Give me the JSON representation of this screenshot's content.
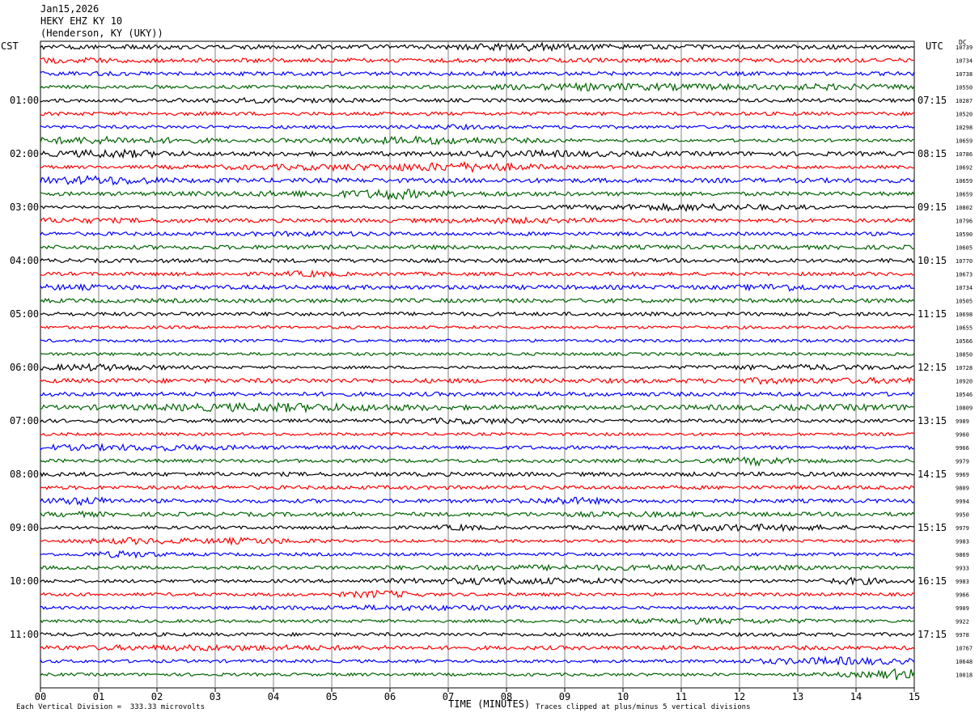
{
  "header": {
    "date": "Jan15,2026",
    "station": "HEKY EHZ KY 10",
    "location": "(Henderson, KY (UKY))"
  },
  "footer": {
    "division_note": "Each Vertical Division =  333.33 microvolts",
    "clip_note": "Traces clipped at plus/minus 5 vertical divisions"
  },
  "chart_data": {
    "type": "line",
    "title": "",
    "xlabel": "TIME (MINUTES)",
    "ylabel_left": "CST",
    "ylabel_right": "UTC",
    "dc_label": "DC",
    "xlim": [
      0,
      15
    ],
    "x_ticks": [
      "00",
      "01",
      "02",
      "03",
      "04",
      "05",
      "06",
      "07",
      "08",
      "09",
      "10",
      "11",
      "12",
      "13",
      "14",
      "15"
    ],
    "grid": "vertical lines at each minute",
    "trace_colors": [
      "#000000",
      "#ff0000",
      "#0000ff",
      "#006400"
    ],
    "cst_labels": [
      "01:00",
      "02:00",
      "03:00",
      "04:00",
      "05:00",
      "06:00",
      "07:00",
      "08:00",
      "09:00",
      "10:00",
      "11:00"
    ],
    "utc_labels": [
      "07:15",
      "08:15",
      "09:15",
      "10:15",
      "11:15",
      "12:15",
      "13:15",
      "14:15",
      "15:15",
      "16:15",
      "17:15"
    ],
    "dc_offsets": [
      "10739",
      "10734",
      "10738",
      "10550",
      "10287",
      "10520",
      "10298",
      "10659",
      "10786",
      "10692",
      "10659",
      "10659",
      "10802",
      "10796",
      "10590",
      "10605",
      "10770",
      "10673",
      "10734",
      "10505",
      "10698",
      "10655",
      "10566",
      "10850",
      "10728",
      "10920",
      "10546",
      "10809",
      "9989",
      "9960",
      "9966",
      "9979",
      "9969",
      "9809",
      "9994",
      "9950",
      "9979",
      "9983",
      "9869",
      "9933",
      "9983",
      "9966",
      "9909",
      "9922",
      "9978",
      "10767",
      "10648",
      "10018"
    ]
  }
}
